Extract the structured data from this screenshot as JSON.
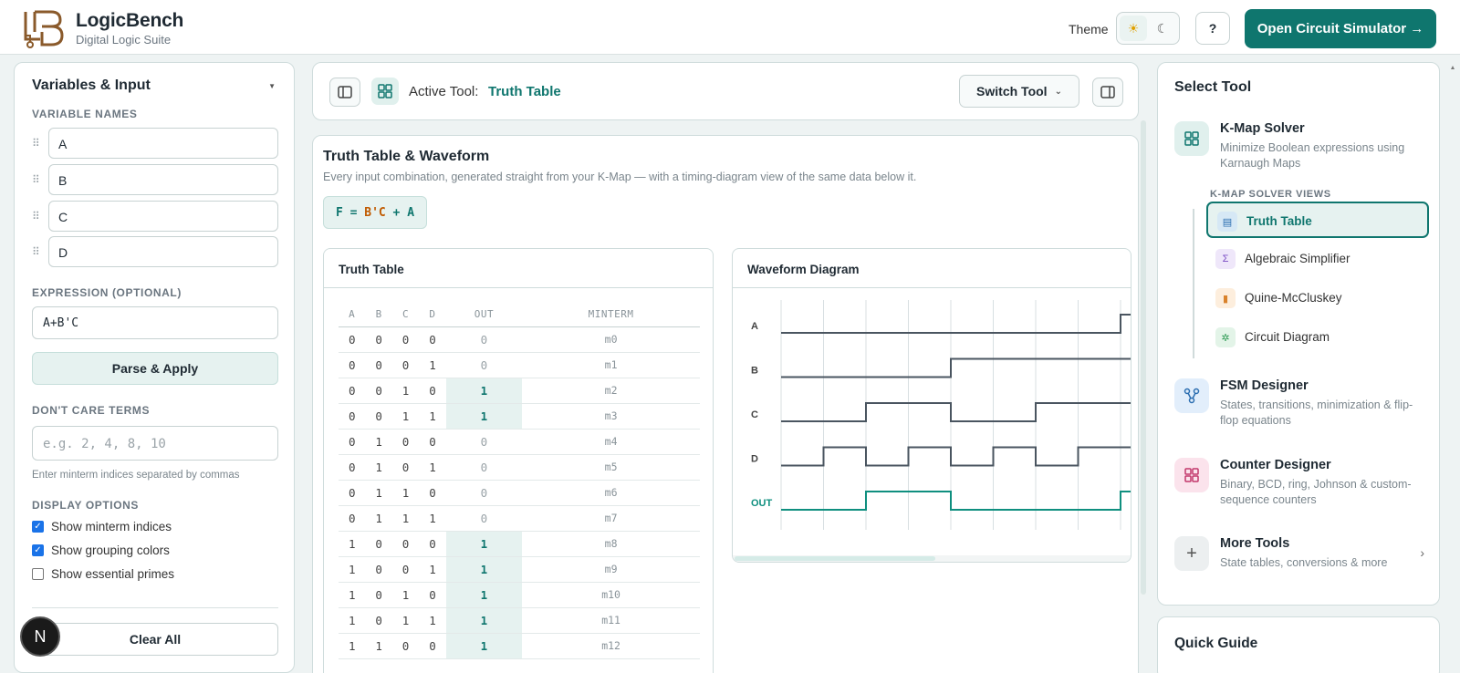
{
  "header": {
    "brand_name": "LogicBench",
    "brand_subtitle": "Digital Logic Suite",
    "theme_label": "Theme",
    "help_label": "?",
    "open_simulator_label": "Open Circuit Simulator →"
  },
  "left_panel": {
    "title": "Variables & Input",
    "variable_names_label": "VARIABLE NAMES",
    "variables": [
      "A",
      "B",
      "C",
      "D"
    ],
    "expression_label": "EXPRESSION (OPTIONAL)",
    "expression_value": "A+B'C",
    "parse_button": "Parse & Apply",
    "dont_care_label": "DON'T CARE TERMS",
    "dont_care_placeholder": "e.g. 2, 4, 8, 10",
    "dont_care_hint": "Enter minterm indices separated by commas",
    "display_options_label": "DISPLAY OPTIONS",
    "options": [
      {
        "label": "Show minterm indices",
        "checked": true
      },
      {
        "label": "Show grouping colors",
        "checked": true
      },
      {
        "label": "Show essential primes",
        "checked": false
      }
    ],
    "clear_button": "Clear All",
    "badge_letter": "N"
  },
  "toolbar": {
    "active_tool_label": "Active Tool:",
    "active_tool_value": "Truth Table",
    "switch_tool_label": "Switch Tool"
  },
  "main": {
    "title": "Truth Table & Waveform",
    "subtitle": "Every input combination, generated straight from your K-Map — with a timing-diagram view of the same data below it.",
    "formula_prefix": "F = ",
    "formula_literal": "B'C",
    "formula_suffix": " + A",
    "truth_table": {
      "title": "Truth Table",
      "columns": [
        "A",
        "B",
        "C",
        "D",
        "OUT",
        "MINTERM"
      ],
      "rows": [
        [
          "0",
          "0",
          "0",
          "0",
          "0",
          "m0"
        ],
        [
          "0",
          "0",
          "0",
          "1",
          "0",
          "m1"
        ],
        [
          "0",
          "0",
          "1",
          "0",
          "1",
          "m2"
        ],
        [
          "0",
          "0",
          "1",
          "1",
          "1",
          "m3"
        ],
        [
          "0",
          "1",
          "0",
          "0",
          "0",
          "m4"
        ],
        [
          "0",
          "1",
          "0",
          "1",
          "0",
          "m5"
        ],
        [
          "0",
          "1",
          "1",
          "0",
          "0",
          "m6"
        ],
        [
          "0",
          "1",
          "1",
          "1",
          "0",
          "m7"
        ],
        [
          "1",
          "0",
          "0",
          "0",
          "1",
          "m8"
        ],
        [
          "1",
          "0",
          "0",
          "1",
          "1",
          "m9"
        ],
        [
          "1",
          "0",
          "1",
          "0",
          "1",
          "m10"
        ],
        [
          "1",
          "0",
          "1",
          "1",
          "1",
          "m11"
        ],
        [
          "1",
          "1",
          "0",
          "0",
          "1",
          "m12"
        ]
      ]
    },
    "waveform": {
      "title": "Waveform Diagram",
      "signals": [
        {
          "name": "A",
          "values": [
            0,
            0,
            0,
            0,
            0,
            0,
            0,
            0,
            1
          ]
        },
        {
          "name": "B",
          "values": [
            0,
            0,
            0,
            0,
            1,
            1,
            1,
            1,
            1
          ]
        },
        {
          "name": "C",
          "values": [
            0,
            0,
            1,
            1,
            0,
            0,
            1,
            1,
            1
          ]
        },
        {
          "name": "D",
          "values": [
            0,
            1,
            0,
            1,
            0,
            1,
            0,
            1,
            1
          ]
        },
        {
          "name": "OUT",
          "values": [
            0,
            0,
            1,
            1,
            0,
            0,
            0,
            0,
            1
          ]
        }
      ],
      "colors": {
        "signal": "#4a5560",
        "out": "#0f8f7f",
        "grid": "#d8dfe2"
      }
    }
  },
  "right_panel": {
    "title": "Select Tool",
    "tools": [
      {
        "name": "K-Map Solver",
        "desc": "Minimize Boolean expressions using Karnaugh Maps",
        "icon": "grid-icon"
      },
      {
        "name": "FSM Designer",
        "desc": "States, transitions, minimization & flip-flop equations",
        "icon": "state-graph-icon"
      },
      {
        "name": "Counter Designer",
        "desc": "Binary, BCD, ring, Johnson & custom-sequence counters",
        "icon": "counter-icon"
      },
      {
        "name": "More Tools",
        "desc": "State tables, conversions & more",
        "icon": "plus-icon"
      }
    ],
    "views_label": "K-MAP SOLVER VIEWS",
    "views": [
      "Truth Table",
      "Algebraic Simplifier",
      "Quine-McCluskey",
      "Circuit Diagram"
    ],
    "guide_title": "Quick Guide"
  },
  "colors": {
    "accent": "#0f766e",
    "accent_light": "#e6f2f0",
    "brand_brown": "#8a5a2b"
  }
}
